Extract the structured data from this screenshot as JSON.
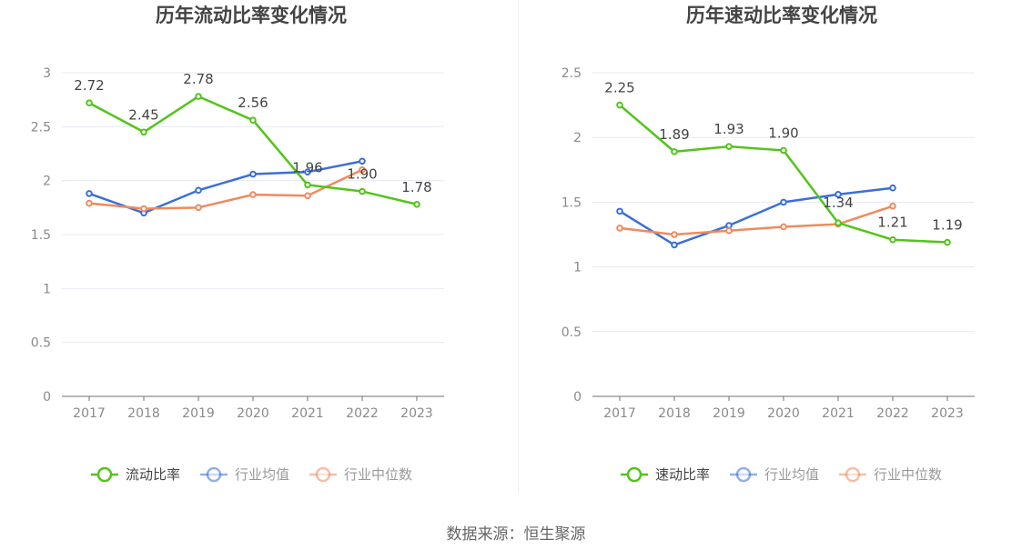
{
  "footer": {
    "source": "数据来源：恒生聚源"
  },
  "chart_data": [
    {
      "type": "line",
      "title": "历年流动比率变化情况",
      "categories": [
        "2017",
        "2018",
        "2019",
        "2020",
        "2021",
        "2022",
        "2023"
      ],
      "ylim": [
        0,
        3
      ],
      "yticks": [
        0,
        0.5,
        1,
        1.5,
        2,
        2.5,
        3
      ],
      "grid": true,
      "legend_position": "bottom",
      "series": [
        {
          "name": "流动比率",
          "color": "#52c41a",
          "values": [
            2.72,
            2.45,
            2.78,
            2.56,
            1.96,
            1.9,
            1.78
          ],
          "labels": [
            "2.72",
            "2.45",
            "2.78",
            "2.56",
            "1.96",
            "1.90",
            "1.78"
          ]
        },
        {
          "name": "行业均值",
          "color": "#3a6fd8",
          "values": [
            1.88,
            1.7,
            1.91,
            2.06,
            2.08,
            2.18,
            null
          ]
        },
        {
          "name": "行业中位数",
          "color": "#f08a5d",
          "values": [
            1.79,
            1.74,
            1.75,
            1.87,
            1.86,
            2.1,
            null
          ]
        }
      ]
    },
    {
      "type": "line",
      "title": "历年速动比率变化情况",
      "categories": [
        "2017",
        "2018",
        "2019",
        "2020",
        "2021",
        "2022",
        "2023"
      ],
      "ylim": [
        0,
        2.5
      ],
      "yticks": [
        0,
        0.5,
        1,
        1.5,
        2,
        2.5
      ],
      "grid": true,
      "legend_position": "bottom",
      "series": [
        {
          "name": "速动比率",
          "color": "#52c41a",
          "values": [
            2.25,
            1.89,
            1.93,
            1.9,
            1.34,
            1.21,
            1.19
          ],
          "labels": [
            "2.25",
            "1.89",
            "1.93",
            "1.90",
            "1.34",
            "1.21",
            "1.19"
          ]
        },
        {
          "name": "行业均值",
          "color": "#3a6fd8",
          "values": [
            1.43,
            1.17,
            1.32,
            1.5,
            1.56,
            1.61,
            null
          ]
        },
        {
          "name": "行业中位数",
          "color": "#f08a5d",
          "values": [
            1.3,
            1.25,
            1.28,
            1.31,
            1.33,
            1.47,
            null
          ]
        }
      ]
    }
  ]
}
